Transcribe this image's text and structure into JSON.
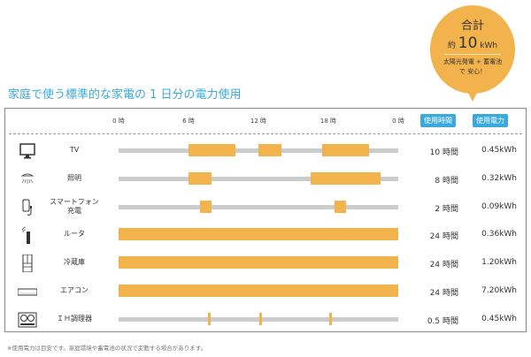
{
  "bubble": {
    "title": "合計",
    "prefix": "約",
    "total": "10",
    "unit": "kWh",
    "note_line1": "太陽光発電 + 蓄電池",
    "note_line2": "で 安心！"
  },
  "title": "家庭で使う標準的な家電の 1 日分の電力使用",
  "footer": "※使用電力は目安です。家庭環境や蓄電池の状況で変動する場合があります。",
  "colors": {
    "accent": "#3aa9dd",
    "bar": "#f2b24c",
    "track": "#cccccc"
  },
  "chart_data": {
    "type": "bar",
    "x_ticks": [
      "0 時",
      "6 時",
      "12 時",
      "18 時",
      "0 時"
    ],
    "xlim": [
      0,
      24
    ],
    "headers": {
      "hours": "使用時間",
      "power": "使用電力"
    },
    "rows": [
      {
        "icon": "tv-icon",
        "label": "TV",
        "segments": [
          [
            6,
            10
          ],
          [
            12,
            14
          ],
          [
            17.5,
            21.5
          ]
        ],
        "hours": "10 時間",
        "kwh": "0.45kWh"
      },
      {
        "icon": "ceiling-light-icon",
        "label": "照明",
        "segments": [
          [
            6,
            8
          ],
          [
            16.5,
            22.5
          ]
        ],
        "hours": "8 時間",
        "kwh": "0.32kWh"
      },
      {
        "icon": "smartphone-charger-icon",
        "label": "スマートフォン\n充電",
        "segments": [
          [
            7,
            8
          ],
          [
            18.5,
            19.5
          ]
        ],
        "hours": "2 時間",
        "kwh": "0.09kWh"
      },
      {
        "icon": "router-icon",
        "label": "ルータ",
        "segments": [
          [
            0,
            24
          ]
        ],
        "hours": "24 時間",
        "kwh": "0.36kWh"
      },
      {
        "icon": "refrigerator-icon",
        "label": "冷蔵庫",
        "segments": [
          [
            0,
            24
          ]
        ],
        "hours": "24 時間",
        "kwh": "1.20kWh"
      },
      {
        "icon": "air-conditioner-icon",
        "label": "エアコン",
        "segments": [
          [
            0,
            24
          ]
        ],
        "hours": "24 時間",
        "kwh": "7.20kWh"
      },
      {
        "icon": "ih-cooktop-icon",
        "label": "ＩＨ調理器",
        "segments": [
          [
            7.7,
            7.9
          ],
          [
            12.1,
            12.3
          ],
          [
            18.1,
            18.3
          ]
        ],
        "hours": "0.5 時間",
        "kwh": "0.45kWh"
      }
    ]
  }
}
